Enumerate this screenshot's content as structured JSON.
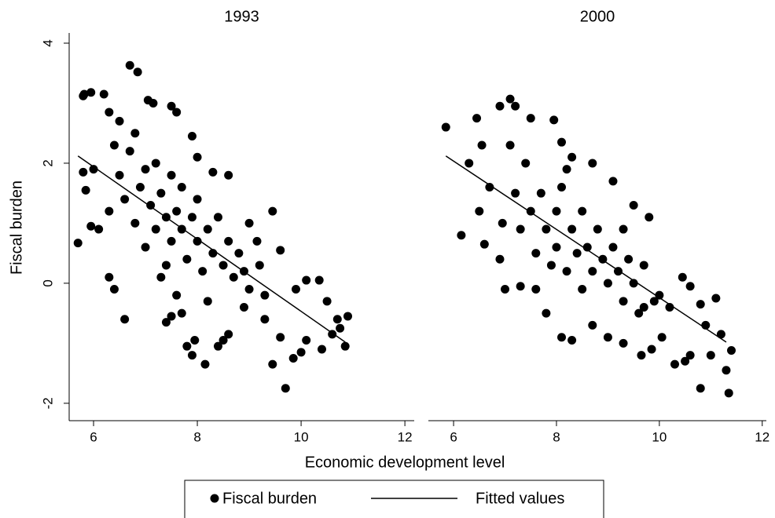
{
  "chart_data": [
    {
      "type": "scatter",
      "title": "1993",
      "xlabel": "Economic development level",
      "ylabel": "Fiscal burden",
      "xlim": [
        5.53,
        12.18
      ],
      "ylim": [
        -2.29,
        4.17
      ],
      "xticks": [
        6,
        8,
        10,
        12
      ],
      "yticks": [
        -2,
        0,
        2,
        4
      ],
      "series": [
        {
          "name": "Fiscal burden",
          "color": "#000000",
          "x": [
            5.7,
            5.8,
            5.82,
            5.95,
            6.2,
            6.7,
            6.85,
            7.05,
            7.15,
            7.5,
            7.6,
            5.8,
            5.85,
            6.0,
            5.95,
            6.1,
            6.3,
            6.4,
            6.6,
            7.4,
            7.5,
            7.7,
            7.8,
            7.9,
            8.15,
            7.95,
            8.4,
            8.5,
            8.6,
            9.45,
            9.7,
            9.85,
            9.6,
            10.0,
            10.1,
            10.4,
            10.6,
            10.75,
            10.85,
            10.9,
            10.7,
            10.35,
            10.5,
            10.1,
            9.9,
            9.45,
            9.6,
            9.15,
            9.0,
            8.6,
            8.3,
            8.0,
            7.9,
            6.5,
            6.3,
            6.5,
            6.6,
            6.7,
            6.8,
            6.9,
            7.0,
            7.0,
            7.1,
            7.2,
            7.2,
            7.3,
            7.4,
            7.4,
            7.5,
            7.5,
            7.6,
            7.7,
            7.7,
            7.8,
            7.9,
            8.0,
            8.0,
            8.1,
            8.2,
            8.3,
            8.4,
            8.5,
            8.6,
            8.7,
            8.8,
            8.9,
            9.0,
            9.2,
            9.3,
            6.3,
            6.4,
            6.8,
            7.3,
            7.6,
            8.2,
            8.9,
            9.3
          ],
          "values": [
            0.67,
            3.12,
            3.15,
            3.18,
            3.15,
            3.63,
            3.52,
            3.05,
            3.0,
            2.95,
            2.85,
            1.85,
            1.55,
            1.9,
            0.95,
            0.9,
            0.1,
            -0.1,
            -0.6,
            -0.65,
            -0.55,
            -0.5,
            -1.05,
            -1.2,
            -1.35,
            -0.95,
            -1.05,
            -0.95,
            -0.85,
            -1.35,
            -1.75,
            -1.25,
            -0.9,
            -1.15,
            -0.95,
            -1.1,
            -0.85,
            -0.75,
            -1.05,
            -0.55,
            -0.6,
            0.05,
            -0.3,
            0.05,
            -0.1,
            1.2,
            0.55,
            0.7,
            1.0,
            1.8,
            1.85,
            2.1,
            2.45,
            2.7,
            2.85,
            1.8,
            1.4,
            2.2,
            1.0,
            1.6,
            1.9,
            0.6,
            1.3,
            2.0,
            0.9,
            1.5,
            1.1,
            0.3,
            1.8,
            0.7,
            1.2,
            0.9,
            1.6,
            0.4,
            1.1,
            0.7,
            1.4,
            0.2,
            0.9,
            0.5,
            1.1,
            0.3,
            0.7,
            0.1,
            0.5,
            0.2,
            -0.1,
            0.3,
            -0.2,
            1.2,
            2.3,
            2.5,
            0.1,
            -0.2,
            -0.3,
            -0.4,
            -0.6
          ]
        },
        {
          "name": "Fitted values",
          "color": "#000000",
          "type": "line",
          "x": [
            5.7,
            10.85
          ],
          "values": [
            2.12,
            -0.98
          ]
        }
      ]
    },
    {
      "type": "scatter",
      "title": "2000",
      "xlim": [
        5.51,
        12.08
      ],
      "ylim": [
        -2.29,
        4.17
      ],
      "xticks": [
        6,
        8,
        10,
        12
      ],
      "series": [
        {
          "color": "#000000",
          "x": [
            5.85,
            6.15,
            6.3,
            6.45,
            6.55,
            6.9,
            7.0,
            7.1,
            7.2,
            7.5,
            7.95,
            8.1,
            6.5,
            6.7,
            6.6,
            6.9,
            7.3,
            7.8,
            8.1,
            8.3,
            8.7,
            9.0,
            9.3,
            9.65,
            9.85,
            10.05,
            10.3,
            10.5,
            10.6,
            10.8,
            11.0,
            11.3,
            11.35,
            11.4,
            11.2,
            10.9,
            11.1,
            10.8,
            10.6,
            10.45,
            9.8,
            9.5,
            9.1,
            8.7,
            8.3,
            9.7,
            10.2,
            10.0,
            7.2,
            7.3,
            7.5,
            7.6,
            7.7,
            7.8,
            7.9,
            8.0,
            8.0,
            8.1,
            8.2,
            8.3,
            8.4,
            8.5,
            8.5,
            8.6,
            8.7,
            8.8,
            8.9,
            9.0,
            9.1,
            9.2,
            9.3,
            9.4,
            9.5,
            9.6,
            9.7,
            9.9,
            7.4,
            7.1,
            6.95,
            7.6,
            8.2,
            9.3
          ],
          "values": [
            2.6,
            0.8,
            2.0,
            2.75,
            2.3,
            2.95,
            -0.1,
            3.07,
            2.95,
            2.75,
            2.72,
            2.35,
            1.2,
            1.6,
            0.65,
            0.4,
            -0.05,
            -0.5,
            -0.9,
            -0.95,
            -0.7,
            -0.9,
            -1.0,
            -1.2,
            -1.1,
            -0.9,
            -1.35,
            -1.3,
            -1.2,
            -1.75,
            -1.2,
            -1.45,
            -1.83,
            -1.12,
            -0.85,
            -0.7,
            -0.25,
            -0.35,
            -0.05,
            0.1,
            1.1,
            1.3,
            1.7,
            2.0,
            2.1,
            -0.4,
            -0.4,
            -0.2,
            1.5,
            0.9,
            1.2,
            0.5,
            1.5,
            0.9,
            0.3,
            1.2,
            0.6,
            1.6,
            0.2,
            0.9,
            0.5,
            1.2,
            -0.1,
            0.6,
            0.2,
            0.9,
            0.4,
            0.0,
            0.6,
            0.2,
            -0.3,
            0.4,
            0.0,
            -0.5,
            0.3,
            -0.3,
            2.0,
            2.3,
            1.0,
            -0.1,
            1.9,
            0.9
          ]
        },
        {
          "color": "#000000",
          "type": "line",
          "x": [
            5.85,
            11.3
          ],
          "values": [
            2.12,
            -0.98
          ]
        }
      ]
    }
  ]
}
